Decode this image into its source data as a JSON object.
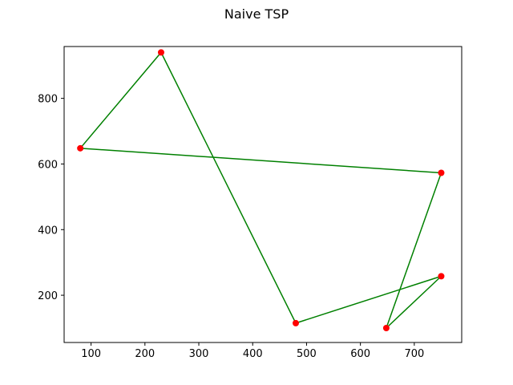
{
  "chart_data": {
    "type": "line",
    "title": "Naive TSP",
    "xlabel": "",
    "ylabel": "",
    "xlim": [
      50,
      788
    ],
    "ylim": [
      56,
      958
    ],
    "xticks": [
      100,
      200,
      300,
      400,
      500,
      600,
      700
    ],
    "yticks": [
      200,
      400,
      600,
      800
    ],
    "grid": false,
    "route": [
      {
        "x": 230,
        "y": 940
      },
      {
        "x": 480,
        "y": 115
      },
      {
        "x": 750,
        "y": 258
      },
      {
        "x": 648,
        "y": 100
      },
      {
        "x": 750,
        "y": 573
      },
      {
        "x": 80,
        "y": 648
      },
      {
        "x": 230,
        "y": 940
      }
    ],
    "cities": [
      {
        "x": 230,
        "y": 940
      },
      {
        "x": 480,
        "y": 115
      },
      {
        "x": 750,
        "y": 258
      },
      {
        "x": 648,
        "y": 100
      },
      {
        "x": 750,
        "y": 573
      },
      {
        "x": 80,
        "y": 648
      }
    ],
    "colors": {
      "route": "#008000",
      "city": "#ff0000"
    }
  }
}
